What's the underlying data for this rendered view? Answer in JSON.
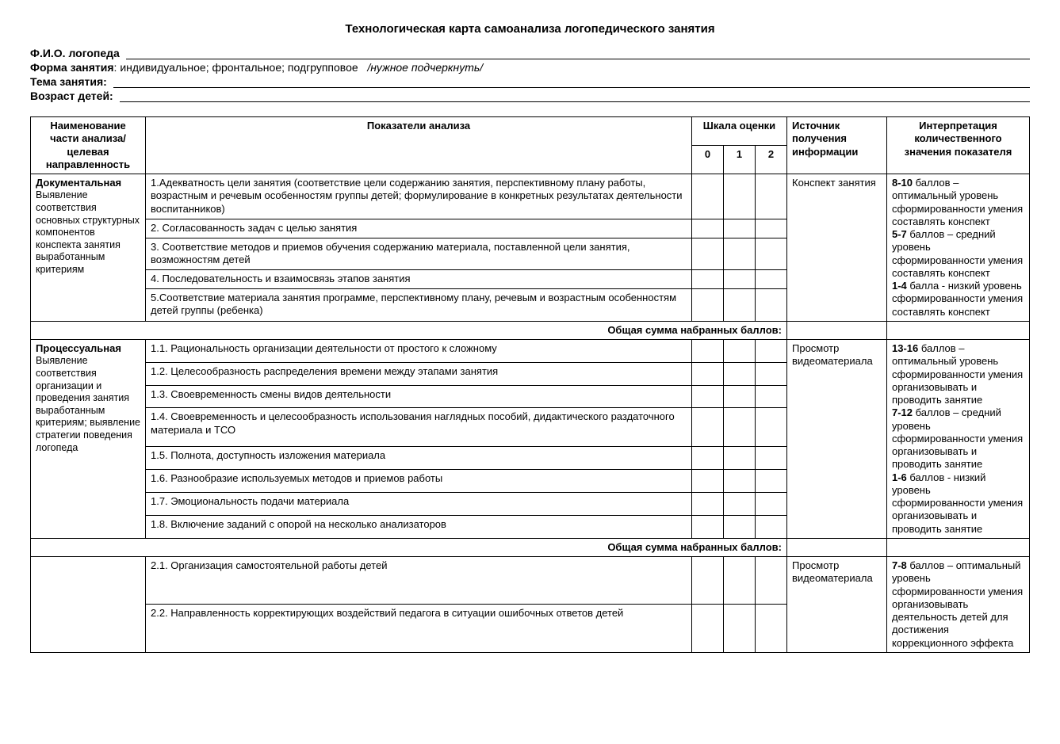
{
  "title": "Технологическая карта  самоанализа логопедического занятия",
  "header": {
    "fio_label": "Ф.И.О. логопеда ",
    "form_label": "Форма занятия",
    "form_rest": ": индивидуальное; фронтальное; подгрупповое   ",
    "form_italic": "/нужное подчеркнуть/",
    "topic_label": "Тема занятия: ",
    "age_label": "Возраст детей: "
  },
  "table": {
    "head": {
      "name": "Наименование части анализа/целевая направленность",
      "indicators": "Показатели анализа",
      "scale": "Шкала оценки",
      "scale0": "0",
      "scale1": "1",
      "scale2": "2",
      "source": "Источник получения информации",
      "interp": "Интерпретация количественного значения показателя"
    },
    "total_label": "Общая сумма  набранных баллов:",
    "sections": [
      {
        "title": "Документальная",
        "sub": "Выявление соответствия основных структурных компонентов конспекта занятия выработанным критериям",
        "source": "Конспект занятия",
        "interp": [
          {
            "b": "8-10",
            "t": "  баллов – оптимальный уровень сформированности умения составлять конспект"
          },
          {
            "b": "5-7",
            "t": " баллов – средний уровень сформированности умения составлять конспект"
          },
          {
            "b": "1-4",
            "t": " балла -  низкий уровень сформированности умения составлять конспект"
          }
        ],
        "rows": [
          "1.Адекватность  цели занятия (соответствие цели содержанию занятия, перспективному плану работы, возрастным и речевым особенностям группы детей; формулирование в конкретных результатах деятельности воспитанников)",
          "2. Согласованность задач  с целью занятия",
          "3. Соответствие методов и приемов обучения содержанию материала, поставленной цели занятия, возможностям детей",
          "4. Последовательность и взаимосвязь этапов занятия",
          "5.Соответствие материала занятия программе, перспективному плану, речевым и возрастным особенностям  детей  группы (ребенка)"
        ]
      },
      {
        "title": "Процессуальная",
        "sub": "Выявление соответствия организации  и проведения  занятия выработанным критериям; выявление стратегии поведения  логопеда",
        "source": "Просмотр видеоматериала",
        "interp": [
          {
            "b": "13-16",
            "t": "  баллов – оптимальный  уровень сформированности умения организовывать и проводить занятие"
          },
          {
            "b": "7-12",
            "t": "  баллов – средний уровень  сформированности умения организовывать и проводить занятие"
          },
          {
            "b": "1-6",
            "t": " баллов -  низкий уровень сформированности умения организовывать и проводить занятие"
          }
        ],
        "rows": [
          "1.1. Рациональность организации деятельности от простого к сложному",
          "1.2. Целесообразность распределения времени между этапами занятия",
          "1.3. Своевременность смены видов деятельности",
          "1.4. Своевременность и целесообразность использования наглядных пособий, дидактического раздаточного материала и ТСО",
          "1.5. Полнота, доступность изложения материала",
          "1.6. Разнообразие используемых методов и приемов работы",
          "1.7. Эмоциональность подачи материала",
          "1.8. Включение заданий с опорой на несколько анализаторов"
        ]
      },
      {
        "title": "",
        "sub": "",
        "source": "Просмотр видеоматериала",
        "interp": [
          {
            "b": "7-8",
            "t": "  баллов – оптимальный уровень сформированности умения организовывать деятельность детей для достижения коррекционного эффекта"
          }
        ],
        "rows": [
          "2.1. Организация самостоятельной работы детей",
          "2.2. Направленность  корректирующих воздействий педагога в ситуации  ошибочных ответов детей"
        ],
        "no_total": true,
        "merge_name_up": true
      }
    ]
  }
}
